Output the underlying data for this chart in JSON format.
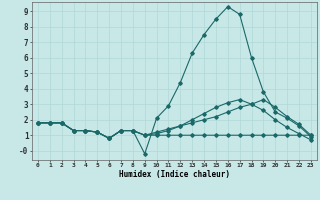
{
  "xlabel": "Humidex (Indice chaleur)",
  "ylabel": "",
  "background_color": "#c8e8e8",
  "grid_color": "#b0d8d8",
  "line_color": "#1a6868",
  "xlim": [
    -0.5,
    23.5
  ],
  "ylim": [
    -0.6,
    9.6
  ],
  "xticks": [
    0,
    1,
    2,
    3,
    4,
    5,
    6,
    7,
    8,
    9,
    10,
    11,
    12,
    13,
    14,
    15,
    16,
    17,
    18,
    19,
    20,
    21,
    22,
    23
  ],
  "yticks": [
    0,
    1,
    2,
    3,
    4,
    5,
    6,
    7,
    8,
    9
  ],
  "ytick_labels": [
    "-0",
    "1",
    "2",
    "3",
    "4",
    "5",
    "6",
    "7",
    "8",
    "9"
  ],
  "series": [
    {
      "x": [
        0,
        1,
        2,
        3,
        4,
        5,
        6,
        7,
        8,
        9,
        10,
        11,
        12,
        13,
        14,
        15,
        16,
        17,
        18,
        19,
        20,
        21,
        22,
        23
      ],
      "y": [
        1.8,
        1.8,
        1.8,
        1.3,
        1.3,
        1.2,
        0.8,
        1.3,
        1.3,
        -0.2,
        2.1,
        2.9,
        4.4,
        6.3,
        7.5,
        8.5,
        9.3,
        8.8,
        6.0,
        3.8,
        2.5,
        2.1,
        1.6,
        0.9
      ]
    },
    {
      "x": [
        0,
        1,
        2,
        3,
        4,
        5,
        6,
        7,
        8,
        9,
        10,
        11,
        12,
        13,
        14,
        15,
        16,
        17,
        18,
        19,
        20,
        21,
        22,
        23
      ],
      "y": [
        1.8,
        1.8,
        1.8,
        1.3,
        1.3,
        1.2,
        0.8,
        1.3,
        1.3,
        1.0,
        1.2,
        1.4,
        1.6,
        1.8,
        2.0,
        2.2,
        2.5,
        2.8,
        3.0,
        3.3,
        2.8,
        2.2,
        1.7,
        1.0
      ]
    },
    {
      "x": [
        0,
        1,
        2,
        3,
        4,
        5,
        6,
        7,
        8,
        9,
        10,
        11,
        12,
        13,
        14,
        15,
        16,
        17,
        18,
        19,
        20,
        21,
        22,
        23
      ],
      "y": [
        1.8,
        1.8,
        1.8,
        1.3,
        1.3,
        1.2,
        0.8,
        1.3,
        1.3,
        1.0,
        1.0,
        1.0,
        1.0,
        1.0,
        1.0,
        1.0,
        1.0,
        1.0,
        1.0,
        1.0,
        1.0,
        1.0,
        1.0,
        1.0
      ]
    },
    {
      "x": [
        0,
        1,
        2,
        3,
        4,
        5,
        6,
        7,
        8,
        9,
        10,
        11,
        12,
        13,
        14,
        15,
        16,
        17,
        18,
        19,
        20,
        21,
        22,
        23
      ],
      "y": [
        1.8,
        1.8,
        1.8,
        1.3,
        1.3,
        1.2,
        0.8,
        1.3,
        1.3,
        1.0,
        1.1,
        1.3,
        1.6,
        2.0,
        2.4,
        2.8,
        3.1,
        3.3,
        3.0,
        2.6,
        2.0,
        1.5,
        1.1,
        0.7
      ]
    }
  ]
}
